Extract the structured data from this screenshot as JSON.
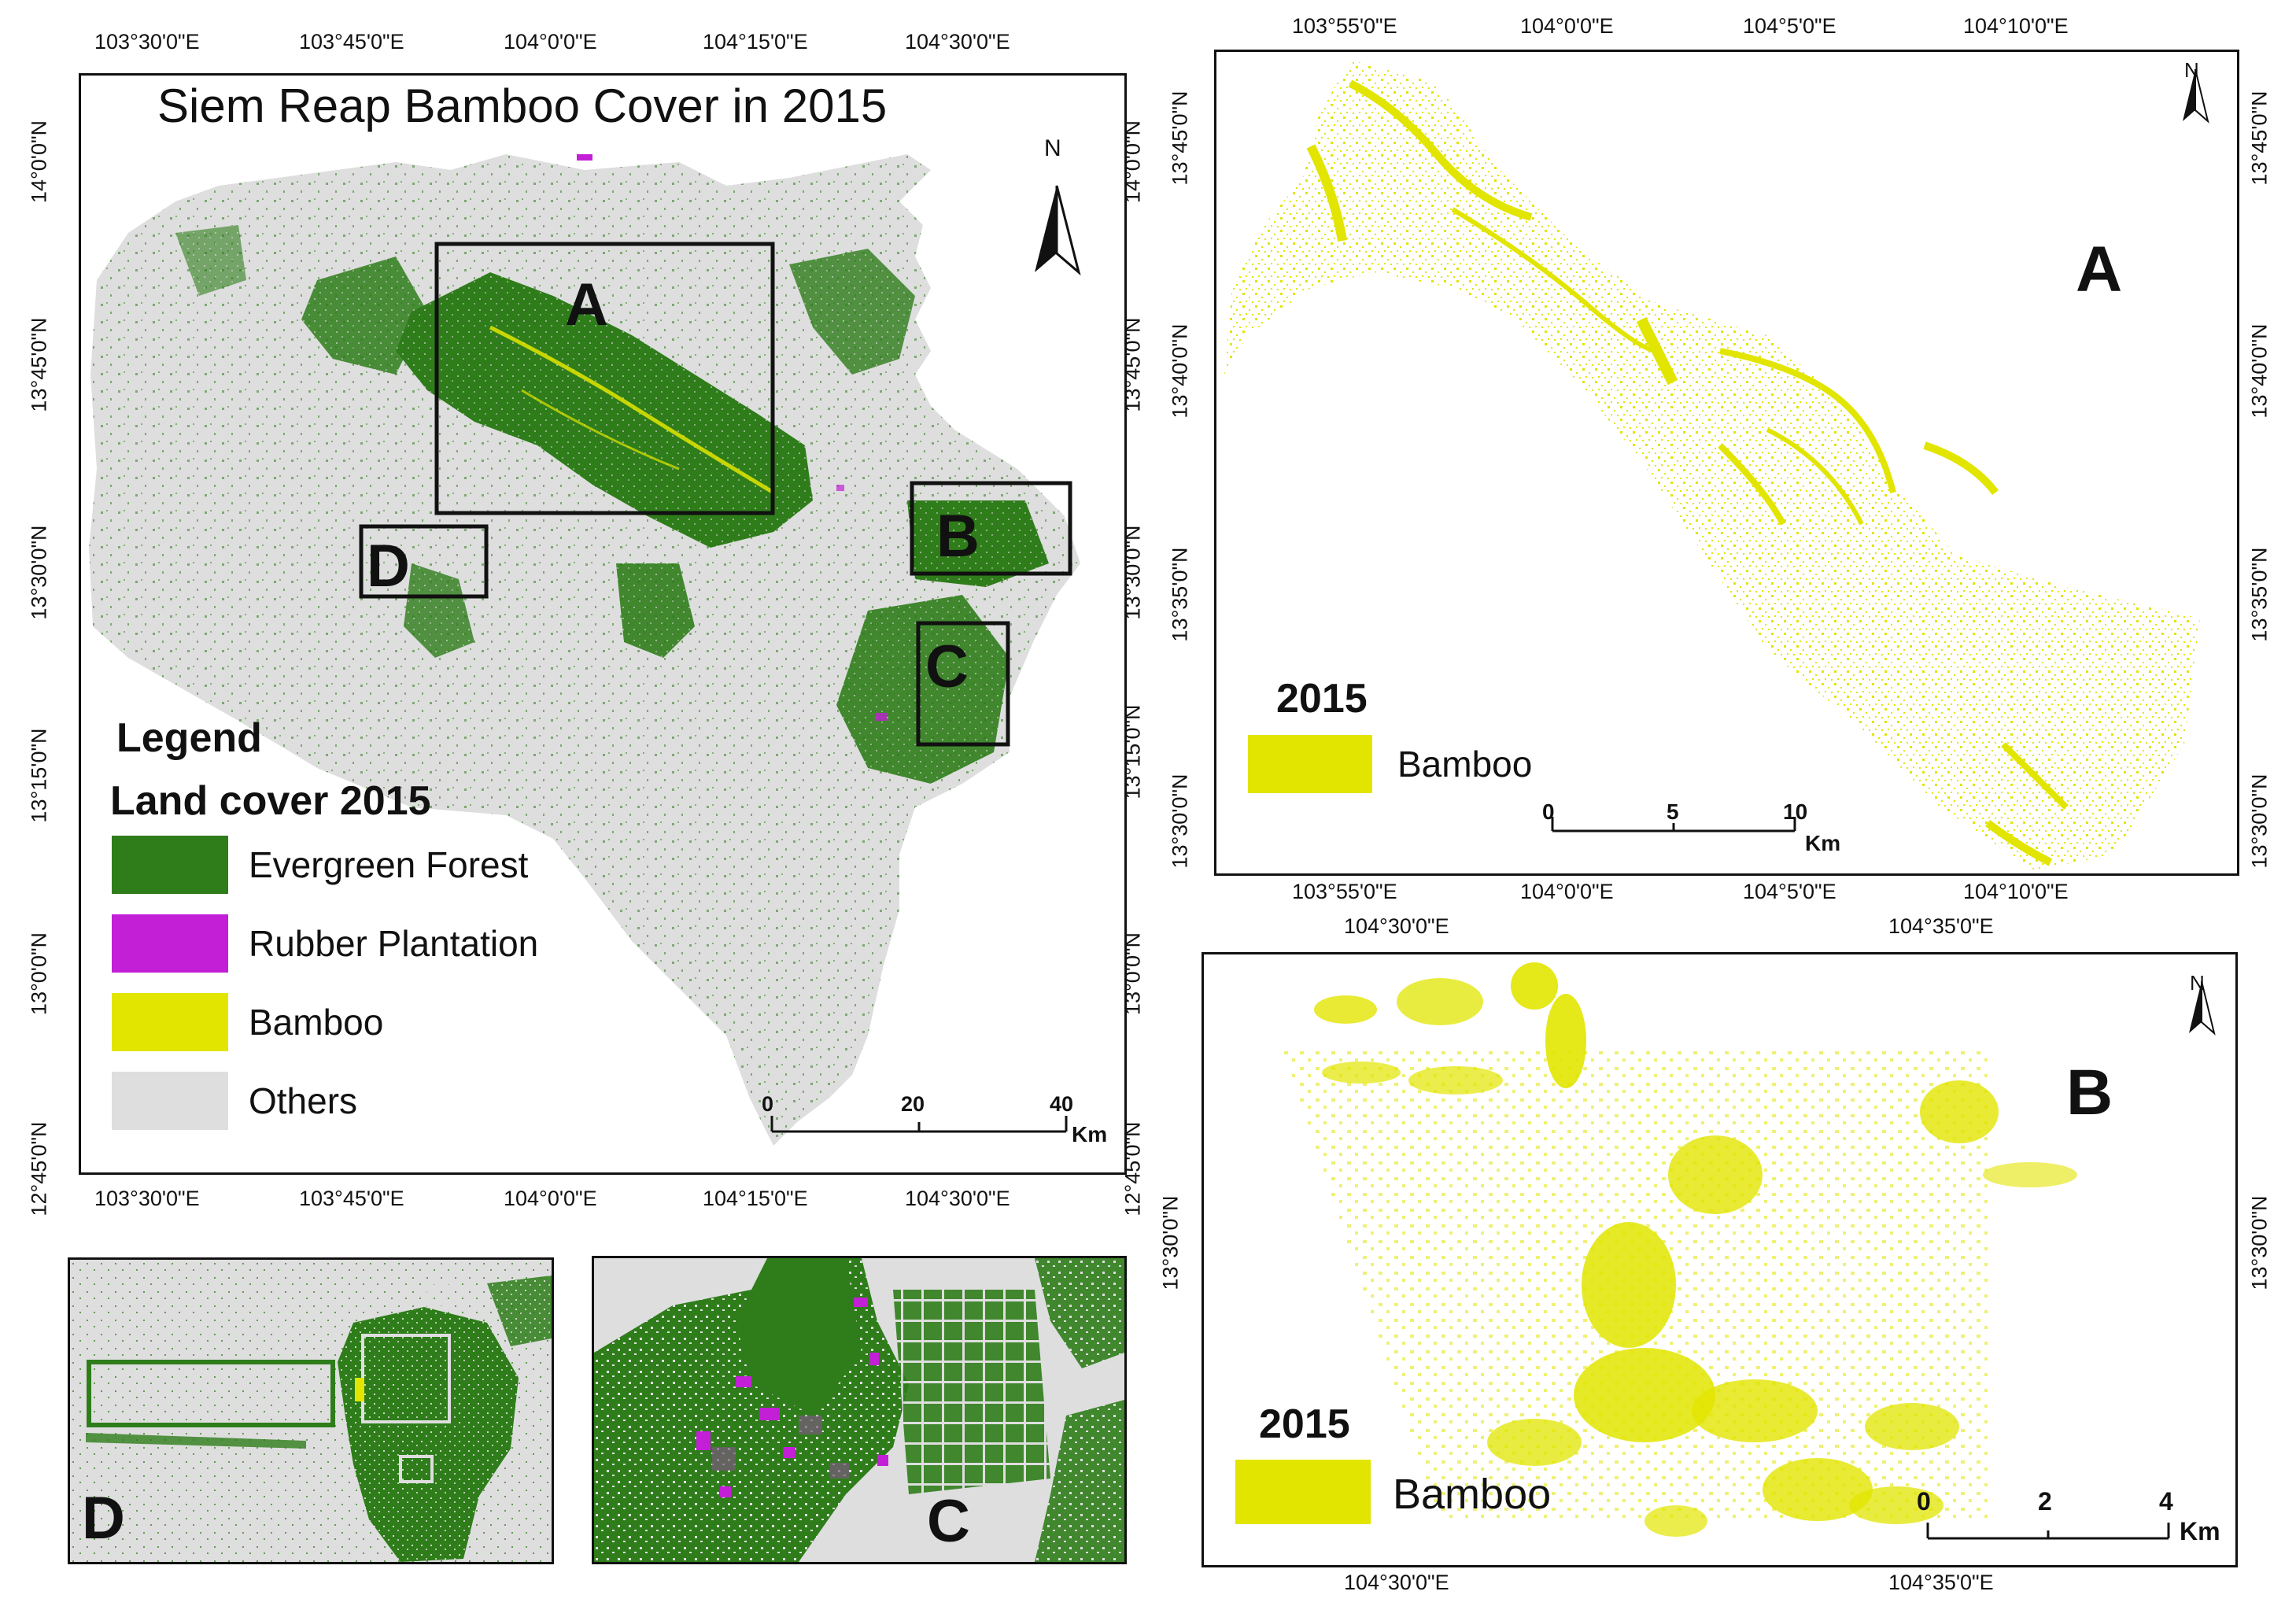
{
  "main_map": {
    "title": "Siem Reap Bamboo Cover in 2015",
    "north": "N",
    "x_ticks_top": [
      "103°30'0\"E",
      "103°45'0\"E",
      "104°0'0\"E",
      "104°15'0\"E",
      "104°30'0\"E"
    ],
    "x_ticks_bottom": [
      "103°30'0\"E",
      "103°45'0\"E",
      "104°0'0\"E",
      "104°15'0\"E",
      "104°30'0\"E"
    ],
    "y_ticks_left": [
      "14°0'0\"N",
      "13°45'0\"N",
      "13°30'0\"N",
      "13°15'0\"N",
      "13°0'0\"N",
      "12°45'0\"N"
    ],
    "y_ticks_right": [
      "14°0'0\"N",
      "13°45'0\"N",
      "13°30'0\"N",
      "13°15'0\"N",
      "13°0'0\"N",
      "12°45'0\"N"
    ],
    "boxes": [
      "A",
      "B",
      "C",
      "D"
    ],
    "scale": {
      "labels": [
        "0",
        "20",
        "40"
      ],
      "unit": "Km"
    },
    "legend": {
      "heading": "Legend",
      "subheading": "Land cover 2015",
      "items": [
        {
          "label": "Evergreen Forest",
          "color": "#2e7d1a"
        },
        {
          "label": "Rubber Plantation",
          "color": "#c21fd6"
        },
        {
          "label": "Bamboo",
          "color": "#e2e500"
        },
        {
          "label": "Others",
          "color": "#dedede"
        }
      ]
    }
  },
  "panel_a": {
    "letter": "A",
    "north": "N",
    "x_ticks_top": [
      "103°55'0\"E",
      "104°0'0\"E",
      "104°5'0\"E",
      "104°10'0\"E"
    ],
    "x_ticks_bottom": [
      "103°55'0\"E",
      "104°0'0\"E",
      "104°5'0\"E",
      "104°10'0\"E"
    ],
    "y_ticks_left": [
      "13°45'0\"N",
      "13°40'0\"N",
      "13°35'0\"N",
      "13°30'0\"N"
    ],
    "y_ticks_right": [
      "13°45'0\"N",
      "13°40'0\"N",
      "13°35'0\"N",
      "13°30'0\"N"
    ],
    "legend_year": "2015",
    "legend_label": "Bamboo",
    "scale": {
      "labels": [
        "0",
        "5",
        "10"
      ],
      "unit": "Km"
    }
  },
  "panel_b": {
    "letter": "B",
    "north": "N",
    "x_ticks_top": [
      "104°30'0\"E",
      "104°35'0\"E"
    ],
    "x_ticks_bottom": [
      "104°30'0\"E",
      "104°35'0\"E"
    ],
    "y_ticks_left": [
      "13°30'0\"N"
    ],
    "y_ticks_right": [
      "13°30'0\"N"
    ],
    "legend_year": "2015",
    "legend_label": "Bamboo",
    "scale": {
      "labels": [
        "0",
        "2",
        "4"
      ],
      "unit": "Km"
    }
  },
  "panel_c": {
    "letter": "C"
  },
  "panel_d": {
    "letter": "D"
  },
  "colors": {
    "bamboo": "#e2e500",
    "forest": "#2e7d1a",
    "rubber": "#c21fd6",
    "others": "#dedede"
  }
}
